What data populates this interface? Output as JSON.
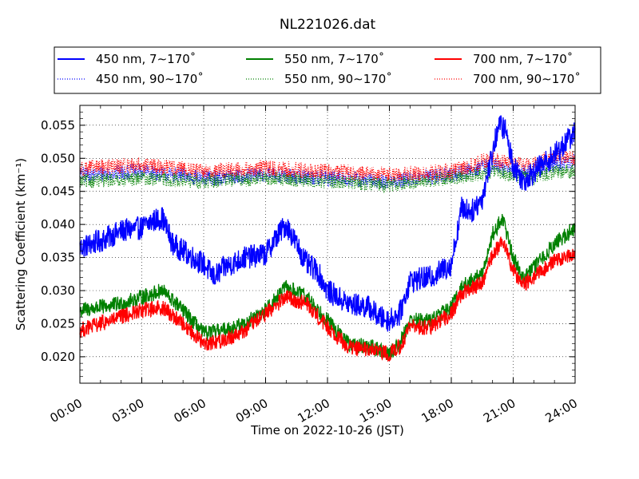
{
  "chart_data": {
    "type": "line",
    "title": "NL221026.dat",
    "xlabel": "Time on 2022-10-26 (JST)",
    "ylabel": "Scattering Coefficient (km⁻¹)",
    "x_ticks": [
      "00:00",
      "03:00",
      "06:00",
      "09:00",
      "12:00",
      "15:00",
      "18:00",
      "21:00",
      "24:00"
    ],
    "x_tick_hours": [
      0,
      3,
      6,
      9,
      12,
      15,
      18,
      21,
      24
    ],
    "xlim_hours": [
      0,
      24
    ],
    "ylim": [
      0.016,
      0.058
    ],
    "y_ticks": [
      0.02,
      0.025,
      0.03,
      0.035,
      0.04,
      0.045,
      0.05,
      0.055
    ],
    "y_tick_labels": [
      "0.020",
      "0.025",
      "0.030",
      "0.035",
      "0.040",
      "0.045",
      "0.050",
      "0.055"
    ],
    "grid": true,
    "legend_position": "top, above plot",
    "series": [
      {
        "name": "450 nm, 7∼170˚",
        "color": "#0000ff",
        "style": "solid",
        "noise": 0.0018,
        "x": [
          0,
          1,
          2,
          3,
          3.5,
          4,
          4.5,
          5,
          6,
          6.5,
          7,
          8,
          9,
          9.5,
          10,
          10.5,
          11,
          11.5,
          12,
          13,
          14,
          14.5,
          15,
          15.5,
          16,
          17,
          17.5,
          18,
          18.5,
          19,
          19.5,
          20,
          20.3,
          20.6,
          21,
          21.5,
          22,
          23,
          24
        ],
        "y": [
          0.0365,
          0.0375,
          0.039,
          0.0395,
          0.0405,
          0.041,
          0.037,
          0.036,
          0.034,
          0.032,
          0.0335,
          0.035,
          0.0355,
          0.038,
          0.04,
          0.037,
          0.034,
          0.033,
          0.03,
          0.028,
          0.0275,
          0.026,
          0.0255,
          0.0265,
          0.0315,
          0.032,
          0.033,
          0.034,
          0.0425,
          0.042,
          0.044,
          0.051,
          0.055,
          0.0545,
          0.049,
          0.0465,
          0.048,
          0.0505,
          0.054
        ]
      },
      {
        "name": "450 nm, 90∼170˚",
        "color": "#0000ff",
        "style": "dotted",
        "noise": 0.0012,
        "x": [
          0,
          3,
          6,
          9,
          12,
          15,
          18,
          20,
          21,
          22,
          23,
          24
        ],
        "y": [
          0.0475,
          0.048,
          0.047,
          0.0475,
          0.047,
          0.0465,
          0.0475,
          0.049,
          0.048,
          0.048,
          0.049,
          0.0495
        ]
      },
      {
        "name": "550 nm, 7∼170˚",
        "color": "#008000",
        "style": "solid",
        "noise": 0.0012,
        "x": [
          0,
          1,
          2,
          3,
          4,
          5,
          6,
          7,
          8,
          9,
          10,
          11,
          12,
          13,
          14,
          15,
          15.5,
          16,
          17,
          18,
          18.5,
          19,
          19.5,
          20,
          20.5,
          21,
          21.5,
          22,
          23,
          24
        ],
        "y": [
          0.027,
          0.0275,
          0.028,
          0.029,
          0.03,
          0.027,
          0.0235,
          0.024,
          0.025,
          0.027,
          0.0305,
          0.029,
          0.0255,
          0.022,
          0.0215,
          0.0205,
          0.022,
          0.0255,
          0.0255,
          0.0275,
          0.0305,
          0.0315,
          0.0325,
          0.0385,
          0.041,
          0.035,
          0.032,
          0.0335,
          0.037,
          0.0395
        ]
      },
      {
        "name": "550 nm, 90∼170˚",
        "color": "#008000",
        "style": "dotted",
        "noise": 0.0011,
        "x": [
          0,
          3,
          6,
          9,
          12,
          15,
          18,
          20,
          21,
          22,
          23,
          24
        ],
        "y": [
          0.0465,
          0.047,
          0.0465,
          0.047,
          0.0465,
          0.046,
          0.047,
          0.048,
          0.0475,
          0.047,
          0.048,
          0.048
        ]
      },
      {
        "name": "700 nm, 7∼170˚",
        "color": "#ff0000",
        "style": "solid",
        "noise": 0.0012,
        "x": [
          0,
          1,
          2,
          3,
          4,
          5,
          6,
          7,
          8,
          9,
          10,
          11,
          12,
          13,
          14,
          15,
          15.5,
          16,
          17,
          18,
          18.5,
          19,
          19.5,
          20,
          20.5,
          21,
          21.5,
          22,
          23,
          24
        ],
        "y": [
          0.024,
          0.025,
          0.026,
          0.027,
          0.0275,
          0.025,
          0.022,
          0.0225,
          0.024,
          0.0265,
          0.029,
          0.028,
          0.0245,
          0.0215,
          0.021,
          0.0205,
          0.0215,
          0.0245,
          0.0245,
          0.0265,
          0.0295,
          0.0305,
          0.031,
          0.0355,
          0.0375,
          0.033,
          0.031,
          0.032,
          0.0345,
          0.0355
        ]
      },
      {
        "name": "700 nm, 90∼170˚",
        "color": "#ff0000",
        "style": "dotted",
        "noise": 0.0012,
        "x": [
          0,
          3,
          6,
          9,
          12,
          15,
          18,
          20,
          21,
          22,
          23,
          24
        ],
        "y": [
          0.0485,
          0.049,
          0.048,
          0.0485,
          0.048,
          0.0475,
          0.048,
          0.05,
          0.049,
          0.049,
          0.0505,
          0.05
        ]
      }
    ]
  }
}
